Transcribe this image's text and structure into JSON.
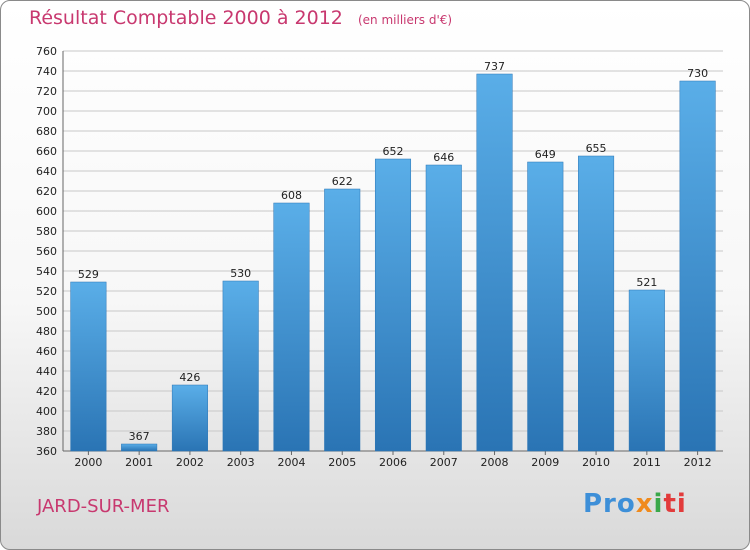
{
  "chart_data": {
    "type": "bar",
    "title": "Résultat Comptable 2000 à 2012",
    "subtitle": "(en milliers d'€)",
    "categories": [
      "2000",
      "2001",
      "2002",
      "2003",
      "2004",
      "2005",
      "2006",
      "2007",
      "2008",
      "2009",
      "2010",
      "2011",
      "2012"
    ],
    "values": [
      529,
      367,
      426,
      530,
      608,
      622,
      652,
      646,
      737,
      649,
      655,
      521,
      730
    ],
    "ylim": [
      360,
      760
    ],
    "ytick_step": 20,
    "xlabel": "",
    "ylabel": "",
    "grid": true,
    "bar_color": "#4f9fdc",
    "bar_color_dark": "#2a74b4"
  },
  "place_name": "JARD-SUR-MER",
  "logo": {
    "part1": "Pro",
    "part2": "x",
    "part3": "i",
    "part4": "ti"
  },
  "colors": {
    "title": "#c8386f",
    "grid": "#c8c8c8"
  }
}
